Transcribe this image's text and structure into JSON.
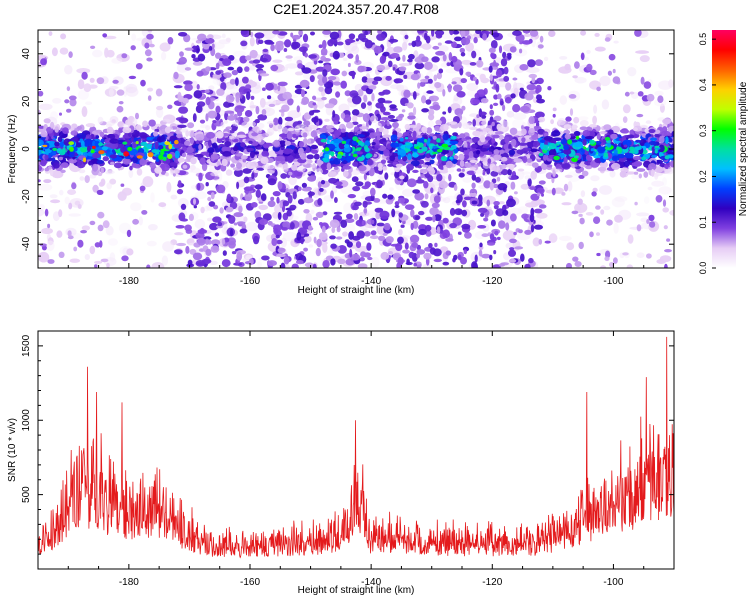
{
  "title": "C2E1.2024.357.20.47.R08",
  "chart_data": [
    {
      "type": "heatmap",
      "xlabel": "Height of straight line (km)",
      "ylabel": "Frequency (Hz)",
      "xlim": [
        -195,
        -90
      ],
      "ylim": [
        -50,
        50
      ],
      "xticks": [
        -180,
        -160,
        -140,
        -120,
        -100
      ],
      "yticks": [
        -40,
        -20,
        0,
        20,
        40
      ],
      "colorbar": {
        "label": "Normalized spectral amplitude",
        "range": [
          0,
          0.52
        ],
        "ticks": [
          0.0,
          0.1,
          0.2,
          0.3,
          0.4,
          0.5
        ],
        "colors": [
          "#ffffff",
          "#e6ccf5",
          "#8040e0",
          "#3000c0",
          "#0040ff",
          "#00c0ff",
          "#00e0a0",
          "#00ff00",
          "#c0ff00",
          "#ffd000",
          "#ff6000",
          "#ff0000",
          "#ff0060"
        ]
      },
      "band": {
        "center_hz": 0,
        "width_hz": 12,
        "strong_segments_km": [
          [
            -195,
            -172
          ],
          [
            -148,
            -140
          ],
          [
            -137,
            -126
          ],
          [
            -112,
            -90
          ]
        ],
        "peak_amplitude": 0.5
      },
      "background_noise": {
        "dense_range_km": [
          -172,
          -112
        ],
        "sparse_ranges_km": [
          [
            -195,
            -172
          ],
          [
            -112,
            -90
          ]
        ]
      }
    },
    {
      "type": "line",
      "xlabel": "Height of straight line (km)",
      "ylabel": "SNR (10 * v/v)",
      "xlim": [
        -195,
        -90
      ],
      "ylim": [
        0,
        1600
      ],
      "xticks": [
        -180,
        -160,
        -140,
        -120,
        -100
      ],
      "yticks": [
        500,
        1000,
        1500
      ],
      "color": "#e41a1c",
      "series": [
        {
          "x": [
            -195,
            -192,
            -190,
            -188,
            -186,
            -184,
            -182,
            -180,
            -178,
            -176,
            -174,
            -172,
            -170,
            -168,
            -166,
            -164,
            -162,
            -160,
            -158,
            -156,
            -154,
            -152,
            -150,
            -148,
            -146,
            -144,
            -142,
            -140,
            -138,
            -136,
            -134,
            -132,
            -130,
            -128,
            -126,
            -124,
            -122,
            -120,
            -118,
            -116,
            -114,
            -112,
            -110,
            -108,
            -106,
            -104,
            -102,
            -100,
            -98,
            -96,
            -94,
            -92,
            -90
          ],
          "values": [
            280,
            520,
            900,
            960,
            1100,
            920,
            880,
            760,
            840,
            760,
            720,
            560,
            460,
            380,
            320,
            300,
            300,
            310,
            320,
            330,
            340,
            350,
            360,
            400,
            440,
            600,
            1000,
            380,
            420,
            400,
            380,
            360,
            360,
            350,
            340,
            330,
            340,
            340,
            330,
            330,
            340,
            360,
            420,
            520,
            620,
            720,
            800,
            880,
            980,
            1080,
            1200,
            1300,
            1250
          ]
        }
      ],
      "peaks": [
        {
          "x": -186.8,
          "y": 1360
        },
        {
          "x": -185.3,
          "y": 1190
        },
        {
          "x": -181.1,
          "y": 1120
        },
        {
          "x": -142.6,
          "y": 1000
        },
        {
          "x": -104.4,
          "y": 1190
        },
        {
          "x": -94.6,
          "y": 1290
        },
        {
          "x": -91.2,
          "y": 1560
        }
      ]
    }
  ]
}
